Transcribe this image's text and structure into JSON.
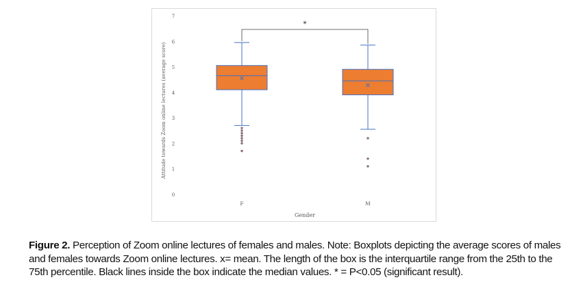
{
  "chart_data": {
    "type": "box",
    "xlabel": "Gender",
    "ylabel": "Attitude towards Zoom online lectures (average score)",
    "ylim": [
      0,
      7
    ],
    "yticks": [
      "0",
      "1",
      "2",
      "3",
      "4",
      "5",
      "6",
      "7"
    ],
    "categories": [
      "F",
      "M"
    ],
    "boxes": [
      {
        "name": "F",
        "whisker_low": 2.7,
        "q1": 4.1,
        "median": 4.65,
        "q3": 5.05,
        "whisker_high": 5.95,
        "mean": 4.55,
        "outliers": [
          2.6,
          2.5,
          2.4,
          2.3,
          2.2,
          2.1,
          2.0,
          1.7
        ]
      },
      {
        "name": "M",
        "whisker_low": 2.55,
        "q1": 3.9,
        "median": 4.45,
        "q3": 4.9,
        "whisker_high": 5.85,
        "mean": 4.28,
        "outliers": [
          2.2,
          1.4,
          1.1
        ]
      }
    ],
    "significance": {
      "label": "*",
      "between": [
        "F",
        "M"
      ]
    },
    "grid": false,
    "colors": {
      "box_fill": "#ed7d31",
      "box_stroke": "#4472c4",
      "whisker": "#4472c4",
      "outlier": "#8c6d7b",
      "median": "#4472c4",
      "mean_marker": "#4472c4"
    }
  },
  "caption": {
    "label": "Figure 2.",
    "text": " Perception of Zoom online lectures of females and males. Note: Boxplots depicting the average scores of males and females towards Zoom online lectures. x= mean. The length of the box is the interquartile range from the 25th to the 75th percentile. Black lines inside the box indicate the median values. * = P<0.05 (significant result)."
  }
}
